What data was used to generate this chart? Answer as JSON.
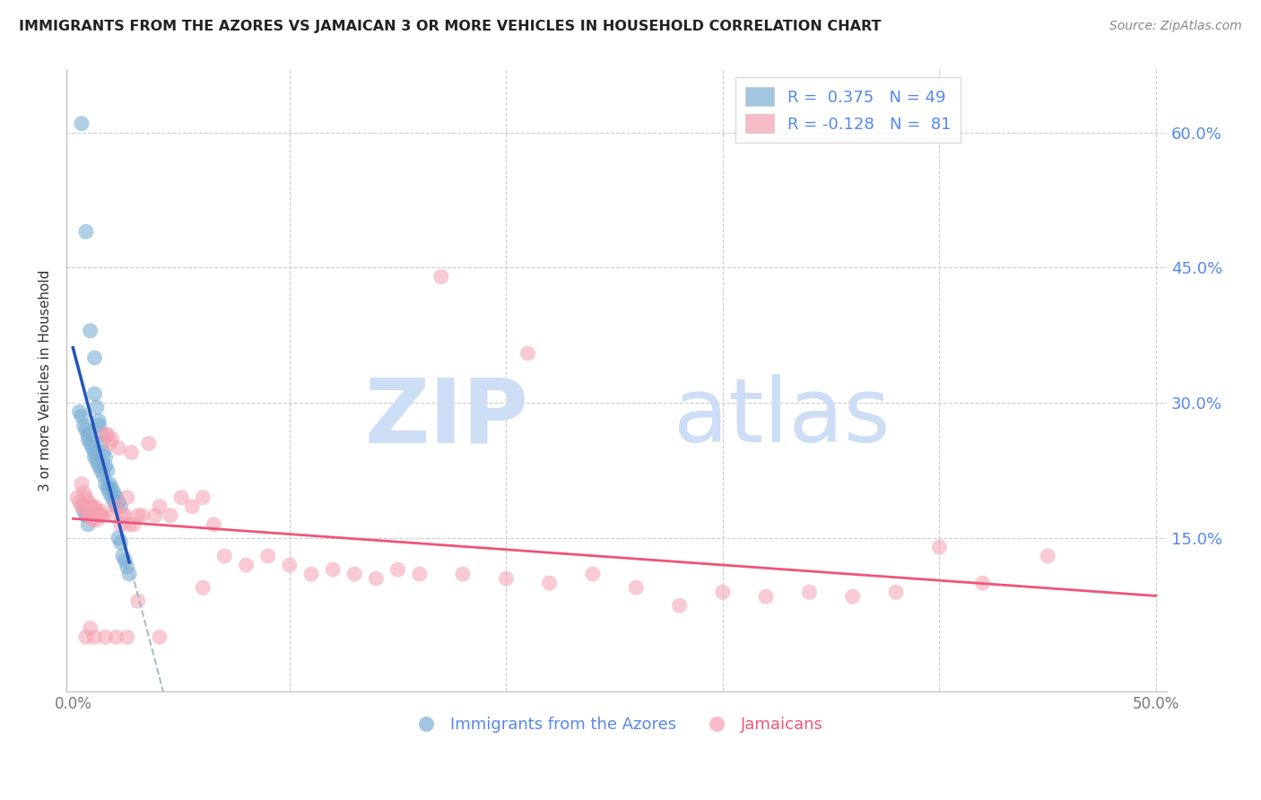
{
  "title": "IMMIGRANTS FROM THE AZORES VS JAMAICAN 3 OR MORE VEHICLES IN HOUSEHOLD CORRELATION CHART",
  "source": "Source: ZipAtlas.com",
  "ylabel": "3 or more Vehicles in Household",
  "xlim": [
    -0.003,
    0.505
  ],
  "ylim": [
    -0.02,
    0.67
  ],
  "xtick_vals": [
    0.0,
    0.1,
    0.2,
    0.3,
    0.4,
    0.5
  ],
  "xticklabels": [
    "0.0%",
    "",
    "",
    "",
    "",
    "50.0%"
  ],
  "ytick_vals": [
    0.0,
    0.15,
    0.3,
    0.45,
    0.6
  ],
  "ytick_right_labels": [
    "",
    "15.0%",
    "30.0%",
    "45.0%",
    "60.0%"
  ],
  "blue_color": "#7BAFD4",
  "pink_color": "#F4A0B0",
  "blue_line_color": "#2255BB",
  "pink_line_color": "#EE5577",
  "gray_dash_color": "#AABBCC",
  "blue_R": 0.375,
  "blue_N": 49,
  "pink_R": -0.128,
  "pink_N": 81,
  "legend_label_blue": "Immigrants from the Azores",
  "legend_label_pink": "Jamaicans",
  "watermark_zip": "ZIP",
  "watermark_atlas": "atlas",
  "right_label_color": "#5588EE",
  "title_color": "#222222",
  "source_color": "#888888",
  "blue_dots_x": [
    0.004,
    0.006,
    0.008,
    0.01,
    0.01,
    0.011,
    0.012,
    0.012,
    0.013,
    0.013,
    0.014,
    0.015,
    0.015,
    0.016,
    0.017,
    0.018,
    0.019,
    0.02,
    0.021,
    0.022,
    0.003,
    0.004,
    0.005,
    0.006,
    0.007,
    0.007,
    0.008,
    0.009,
    0.01,
    0.01,
    0.011,
    0.012,
    0.013,
    0.014,
    0.015,
    0.016,
    0.017,
    0.018,
    0.019,
    0.02,
    0.005,
    0.006,
    0.007,
    0.021,
    0.022,
    0.023,
    0.024,
    0.025,
    0.026
  ],
  "blue_dots_y": [
    0.61,
    0.49,
    0.38,
    0.35,
    0.31,
    0.295,
    0.28,
    0.275,
    0.265,
    0.255,
    0.245,
    0.24,
    0.23,
    0.225,
    0.21,
    0.205,
    0.2,
    0.195,
    0.19,
    0.185,
    0.29,
    0.285,
    0.275,
    0.27,
    0.265,
    0.26,
    0.255,
    0.25,
    0.245,
    0.24,
    0.235,
    0.23,
    0.225,
    0.22,
    0.21,
    0.205,
    0.2,
    0.195,
    0.19,
    0.185,
    0.18,
    0.175,
    0.165,
    0.15,
    0.145,
    0.13,
    0.125,
    0.118,
    0.11
  ],
  "pink_dots_x": [
    0.002,
    0.003,
    0.004,
    0.004,
    0.005,
    0.005,
    0.006,
    0.006,
    0.007,
    0.007,
    0.008,
    0.008,
    0.009,
    0.009,
    0.01,
    0.01,
    0.011,
    0.011,
    0.012,
    0.013,
    0.013,
    0.014,
    0.015,
    0.016,
    0.017,
    0.018,
    0.019,
    0.02,
    0.021,
    0.022,
    0.023,
    0.024,
    0.025,
    0.026,
    0.027,
    0.028,
    0.03,
    0.032,
    0.035,
    0.038,
    0.04,
    0.045,
    0.05,
    0.055,
    0.06,
    0.065,
    0.07,
    0.08,
    0.09,
    0.1,
    0.11,
    0.12,
    0.13,
    0.14,
    0.15,
    0.16,
    0.18,
    0.2,
    0.22,
    0.24,
    0.26,
    0.28,
    0.3,
    0.32,
    0.34,
    0.36,
    0.38,
    0.4,
    0.42,
    0.45,
    0.006,
    0.008,
    0.01,
    0.015,
    0.02,
    0.025,
    0.03,
    0.04,
    0.06,
    0.17,
    0.21
  ],
  "pink_dots_y": [
    0.195,
    0.19,
    0.185,
    0.21,
    0.2,
    0.185,
    0.195,
    0.18,
    0.19,
    0.175,
    0.185,
    0.175,
    0.185,
    0.17,
    0.185,
    0.175,
    0.18,
    0.17,
    0.175,
    0.175,
    0.18,
    0.175,
    0.265,
    0.265,
    0.255,
    0.26,
    0.175,
    0.185,
    0.25,
    0.165,
    0.175,
    0.175,
    0.195,
    0.165,
    0.245,
    0.165,
    0.175,
    0.175,
    0.255,
    0.175,
    0.185,
    0.175,
    0.195,
    0.185,
    0.195,
    0.165,
    0.13,
    0.12,
    0.13,
    0.12,
    0.11,
    0.115,
    0.11,
    0.105,
    0.115,
    0.11,
    0.11,
    0.105,
    0.1,
    0.11,
    0.095,
    0.075,
    0.09,
    0.085,
    0.09,
    0.085,
    0.09,
    0.14,
    0.1,
    0.13,
    0.04,
    0.05,
    0.04,
    0.04,
    0.04,
    0.04,
    0.08,
    0.04,
    0.095,
    0.44,
    0.355
  ]
}
